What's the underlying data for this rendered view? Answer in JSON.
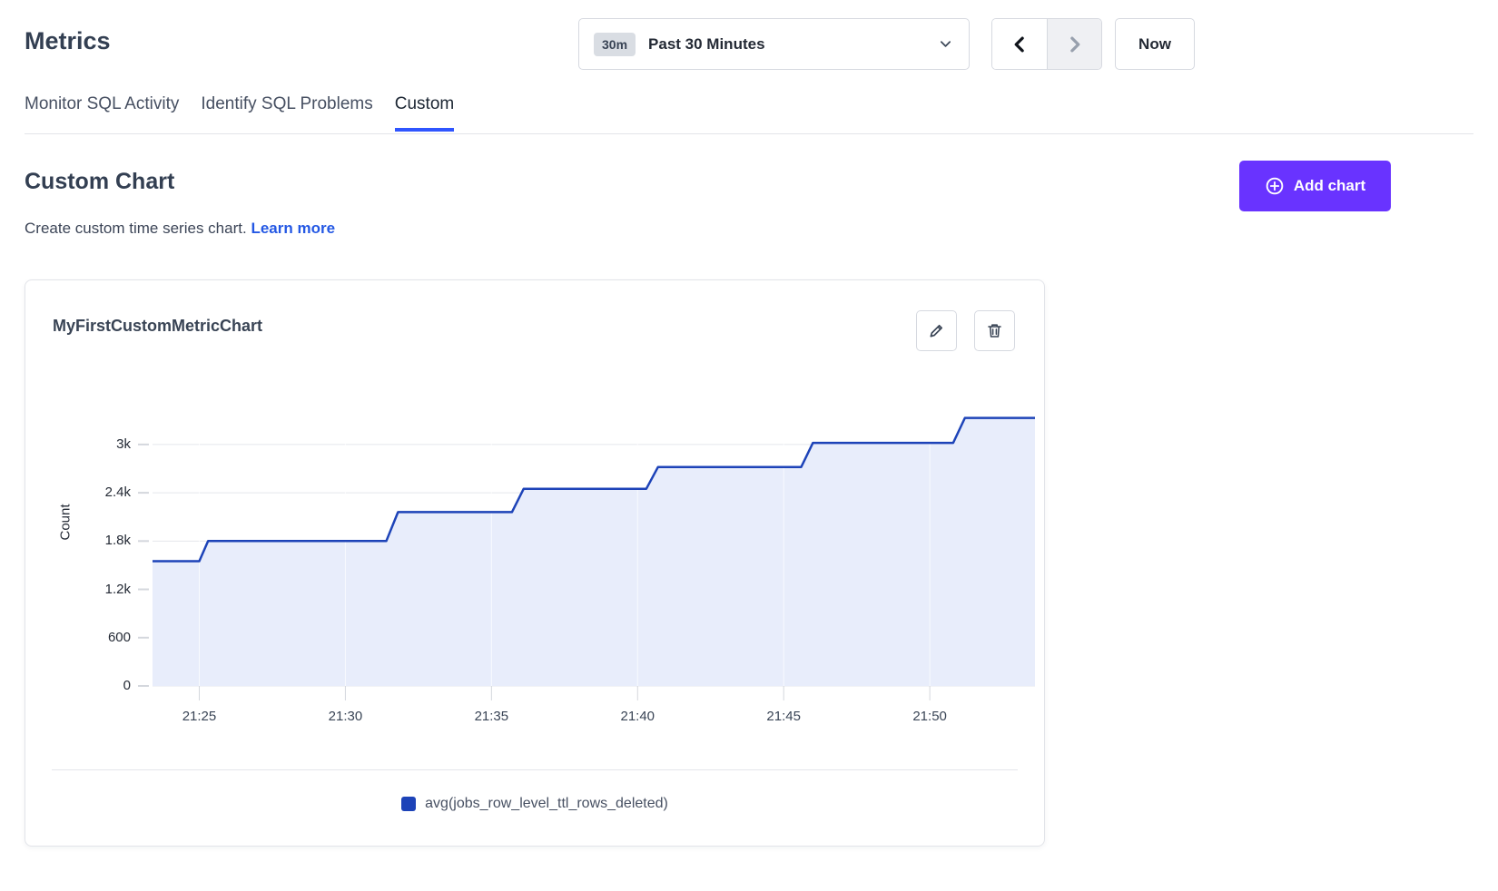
{
  "header": {
    "title": "Metrics"
  },
  "time_controls": {
    "range_badge": "30m",
    "range_label": "Past 30 Minutes",
    "now_label": "Now"
  },
  "tabs": [
    {
      "label": "Monitor SQL Activity",
      "active": false
    },
    {
      "label": "Identify SQL Problems",
      "active": false
    },
    {
      "label": "Custom",
      "active": true
    }
  ],
  "section": {
    "heading": "Custom Chart",
    "description": "Create custom time series chart.",
    "learn_more": "Learn more",
    "add_chart": "Add chart"
  },
  "card": {
    "title": "MyFirstCustomMetricChart"
  },
  "colors": {
    "accent_purple": "#6933ff",
    "tab_underline": "#2f55ff",
    "link_blue": "#2458e4",
    "line_blue": "#1d43b8",
    "fill_blue": "#e8edfb"
  },
  "chart_data": {
    "type": "area",
    "title": "MyFirstCustomMetricChart",
    "xlabel": "",
    "ylabel": "Count",
    "grid": "horizontal",
    "legend_position": "bottom",
    "x_unit": "minutes after 21:00",
    "x_range": [
      23.4,
      53.6
    ],
    "y_range": [
      0,
      3720
    ],
    "x_ticks": [
      {
        "m": 25,
        "label": "21:25"
      },
      {
        "m": 30,
        "label": "21:30"
      },
      {
        "m": 35,
        "label": "21:35"
      },
      {
        "m": 40,
        "label": "21:40"
      },
      {
        "m": 45,
        "label": "21:45"
      },
      {
        "m": 50,
        "label": "21:50"
      }
    ],
    "y_ticks": [
      {
        "v": 0,
        "label": "0"
      },
      {
        "v": 600,
        "label": "600"
      },
      {
        "v": 1200,
        "label": "1.2k"
      },
      {
        "v": 1800,
        "label": "1.8k"
      },
      {
        "v": 2400,
        "label": "2.4k"
      },
      {
        "v": 3000,
        "label": "3k"
      }
    ],
    "grid_color": "#e5e7ec",
    "tick_color": "#d4d7dd",
    "legend": [
      {
        "label": "avg(jobs_row_level_ttl_rows_deleted)",
        "color": "#1d43b8"
      }
    ],
    "series": [
      {
        "name": "avg(jobs_row_level_ttl_rows_deleted)",
        "color": "#1d43b8",
        "fill": "#e8edfb",
        "points": [
          [
            23.4,
            1550
          ],
          [
            25.0,
            1550
          ],
          [
            25.3,
            1800
          ],
          [
            31.4,
            1800
          ],
          [
            31.8,
            2160
          ],
          [
            35.7,
            2160
          ],
          [
            36.1,
            2450
          ],
          [
            40.3,
            2450
          ],
          [
            40.7,
            2720
          ],
          [
            45.6,
            2720
          ],
          [
            46.0,
            3020
          ],
          [
            50.8,
            3020
          ],
          [
            51.2,
            3330
          ],
          [
            53.6,
            3330
          ]
        ]
      }
    ]
  }
}
